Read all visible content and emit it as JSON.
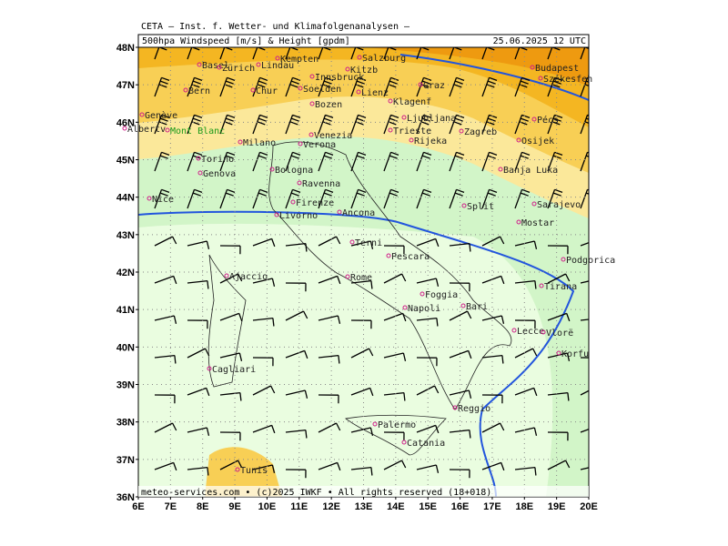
{
  "header": {
    "title": "CETA — Inst. f. Wetter- und Klimafolgenanalysen —",
    "subtitle": "500hpa Windspeed [m/s] & Height [gpdm]",
    "timestamp": "25.06.2025 12 UTC"
  },
  "footer": "meteo-services.com • (c)2025 IWKF • All rights reserved (18+018)",
  "lat_labels": [
    "48N",
    "47N",
    "46N",
    "45N",
    "44N",
    "43N",
    "42N",
    "41N",
    "40N",
    "39N",
    "38N",
    "37N",
    "36N"
  ],
  "lon_labels": [
    "6E",
    "7E",
    "8E",
    "9E",
    "10E",
    "11E",
    "12E",
    "13E",
    "14E",
    "15E",
    "16E",
    "17E",
    "18E",
    "19E",
    "20E"
  ],
  "cities": [
    "Basel",
    "Zürich",
    "Lindau",
    "Kempten",
    "Salzburg",
    "Innsbruck",
    "Kitzb",
    "Budapest",
    "Székesfeh",
    "Bern",
    "Chur",
    "Soelden",
    "Lienz",
    "Graz",
    "Genève",
    "Bozen",
    "Klagenf",
    "Ljubljana",
    "Zagreb",
    "Pécs",
    "Albertv",
    "Mont Blanc",
    "Venezia",
    "Milano",
    "Verona",
    "Trieste",
    "Rijeka",
    "Osijek",
    "Torino",
    "Banja Luka",
    "Genova",
    "Bologna",
    "Ravenna",
    "Sarajevo",
    "Nice",
    "Firenze",
    "Ancona",
    "Split",
    "Mostar",
    "Livorno",
    "Terni",
    "Pescara",
    "Podgorica",
    "Ajaccio",
    "Rome",
    "Foggia",
    "Tirana",
    "Napoli",
    "Bari",
    "Lecce",
    "Vlorë",
    "Korfu",
    "Cagliari",
    "Reggio",
    "Palermo",
    "Catania",
    "Tunis"
  ]
}
